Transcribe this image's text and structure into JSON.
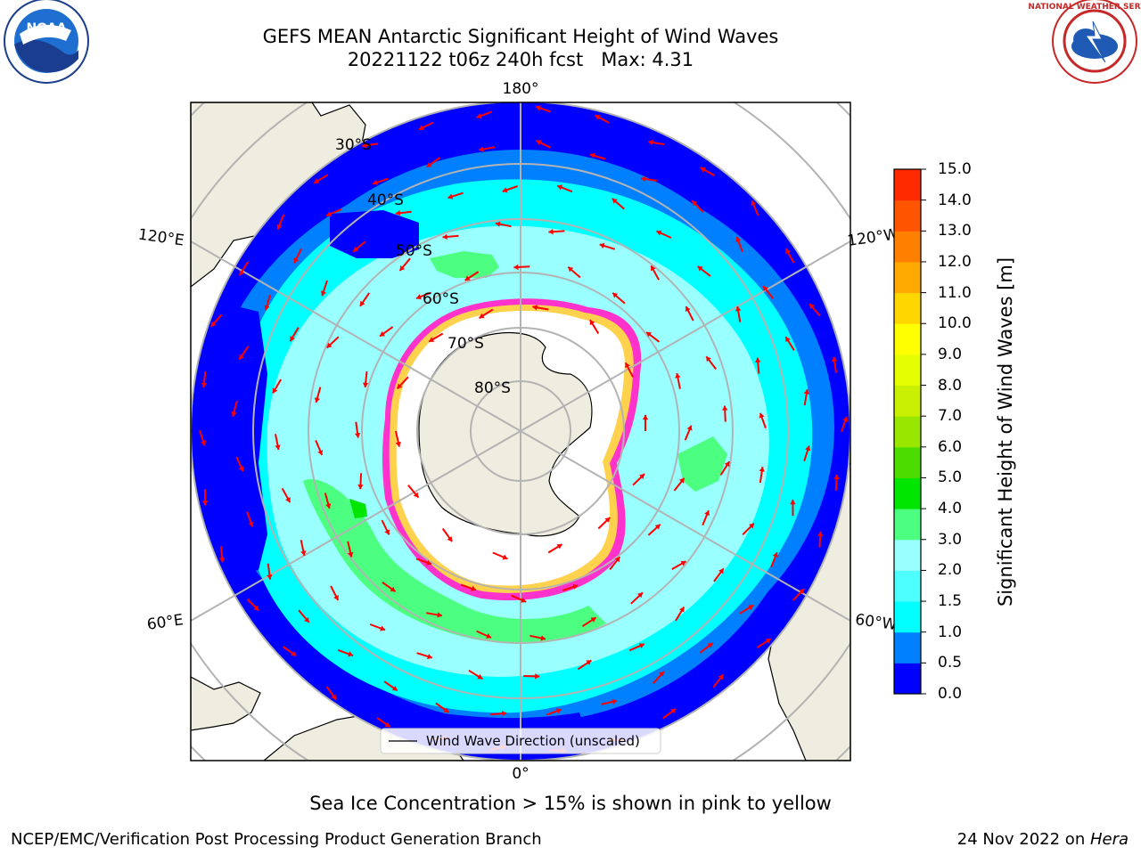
{
  "header": {
    "title_line1": "GEFS MEAN Antarctic Significant Height of Wind Waves",
    "title_line2": "20221122 t06z 240h fcst   Max: 4.31"
  },
  "logos": {
    "noaa": "NOAA",
    "nws": "NATIONAL WEATHER SERVICE"
  },
  "map": {
    "projection": "south-polar-stereographic",
    "longitude_labels": [
      "180°",
      "120°E",
      "120°W",
      "60°E",
      "60°W",
      "0°"
    ],
    "latitude_labels": [
      "30°S",
      "40°S",
      "50°S",
      "60°S",
      "70°S",
      "80°S"
    ],
    "legend_label": "Wind Wave Direction (unscaled)",
    "colors": {
      "land": "#eeeddf",
      "ice_interior": "#ffffff",
      "ice_edge_pink": "#ff33cc",
      "ice_edge_yellow": "#ffd24d",
      "arrow": "#ff0000",
      "grid": "#b3b3b3"
    }
  },
  "colorbar": {
    "label": "Significant Height of Wind Waves [m]",
    "ticks": [
      "0.0",
      "0.5",
      "1.0",
      "1.5",
      "2.0",
      "3.0",
      "4.0",
      "5.0",
      "6.0",
      "7.0",
      "8.0",
      "9.0",
      "10.0",
      "11.0",
      "12.0",
      "13.0",
      "14.0",
      "15.0"
    ],
    "colors": [
      "#0000ff",
      "#0080ff",
      "#00ffff",
      "#4dffff",
      "#99ffff",
      "#4dff80",
      "#00e600",
      "#4ddc00",
      "#99e600",
      "#c8f000",
      "#e6ff00",
      "#ffff00",
      "#ffd700",
      "#ffaa00",
      "#ff8000",
      "#ff5500",
      "#ff2a00"
    ]
  },
  "footer": {
    "note": "Sea Ice Concentration > 15% is shown in pink to yellow",
    "credit": "NCEP/EMC/Verification Post Processing Product Generation Branch",
    "date_prefix": "24 Nov 2022 on ",
    "machine": "Hera"
  }
}
